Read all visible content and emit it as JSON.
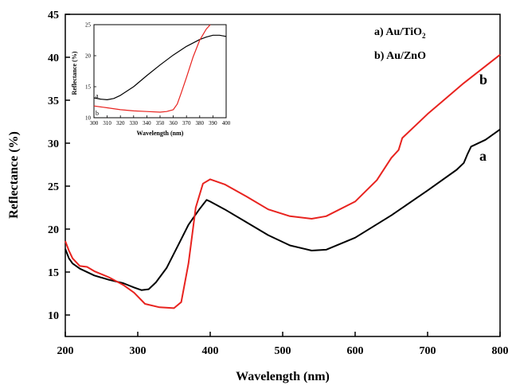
{
  "chart_data": [
    {
      "type": "line",
      "xlabel": "Wavelength (nm)",
      "ylabel": "Reflectance (%)",
      "xlim": [
        200,
        800
      ],
      "ylim": [
        7.5,
        45
      ],
      "xticks": [
        "200",
        "300",
        "400",
        "500",
        "600",
        "700",
        "800"
      ],
      "yticks": [
        "10",
        "15",
        "20",
        "25",
        "30",
        "35",
        "40",
        "45"
      ],
      "legend": [
        "a) Au/TiO",
        "b) Au/ZnO"
      ],
      "legend_subscripts": [
        "2",
        ""
      ],
      "series": [
        {
          "name": "a",
          "color": "#000000",
          "x": [
            200,
            205,
            210,
            220,
            240,
            260,
            280,
            295,
            305,
            315,
            325,
            340,
            355,
            370,
            385,
            395,
            400,
            420,
            450,
            480,
            510,
            540,
            560,
            600,
            650,
            700,
            740,
            750,
            755,
            760,
            780,
            800
          ],
          "y": [
            17.7,
            16.6,
            16.0,
            15.4,
            14.6,
            14.1,
            13.7,
            13.2,
            12.9,
            13.0,
            13.8,
            15.5,
            18.0,
            20.5,
            22.3,
            23.4,
            23.2,
            22.3,
            20.8,
            19.3,
            18.1,
            17.5,
            17.6,
            19.0,
            21.6,
            24.5,
            26.9,
            27.7,
            28.7,
            29.6,
            30.4,
            31.6
          ]
        },
        {
          "name": "b",
          "color": "#e8231f",
          "x": [
            200,
            205,
            210,
            220,
            230,
            240,
            260,
            280,
            295,
            310,
            330,
            350,
            360,
            370,
            380,
            390,
            400,
            420,
            450,
            480,
            510,
            540,
            560,
            600,
            630,
            650,
            660,
            665,
            700,
            750,
            800
          ],
          "y": [
            18.6,
            17.5,
            16.6,
            15.7,
            15.6,
            15.1,
            14.4,
            13.5,
            12.6,
            11.3,
            10.9,
            10.8,
            11.5,
            16.0,
            22.5,
            25.3,
            25.8,
            25.2,
            23.8,
            22.3,
            21.5,
            21.2,
            21.5,
            23.2,
            25.7,
            28.3,
            29.2,
            30.6,
            33.4,
            37.0,
            40.3
          ]
        }
      ],
      "series_labels": [
        "a",
        "b"
      ]
    },
    {
      "type": "line",
      "xlabel": "Wavelength (nm)",
      "ylabel": "Reflectance (%)",
      "xlim": [
        300,
        400
      ],
      "ylim": [
        10,
        25
      ],
      "xticks": [
        "300",
        "310",
        "320",
        "330",
        "340",
        "350",
        "360",
        "370",
        "380",
        "390",
        "400"
      ],
      "yticks": [
        "10",
        "15",
        "20",
        "25"
      ],
      "series": [
        {
          "name": "a",
          "color": "#000000",
          "x": [
            300,
            305,
            310,
            315,
            320,
            330,
            340,
            350,
            360,
            370,
            380,
            385,
            390,
            395,
            400
          ],
          "y": [
            13.2,
            13.0,
            12.9,
            13.1,
            13.6,
            15.0,
            16.8,
            18.5,
            20.1,
            21.5,
            22.6,
            23.0,
            23.3,
            23.3,
            23.1
          ]
        },
        {
          "name": "b",
          "color": "#e8231f",
          "x": [
            300,
            310,
            320,
            330,
            340,
            350,
            355,
            360,
            363,
            366,
            370,
            375,
            380,
            385,
            388
          ],
          "y": [
            11.9,
            11.6,
            11.3,
            11.1,
            11.0,
            10.9,
            11.0,
            11.3,
            12.2,
            14.0,
            16.5,
            19.8,
            22.5,
            24.3,
            25.0
          ]
        }
      ],
      "series_labels": [
        "a",
        "b"
      ]
    }
  ]
}
